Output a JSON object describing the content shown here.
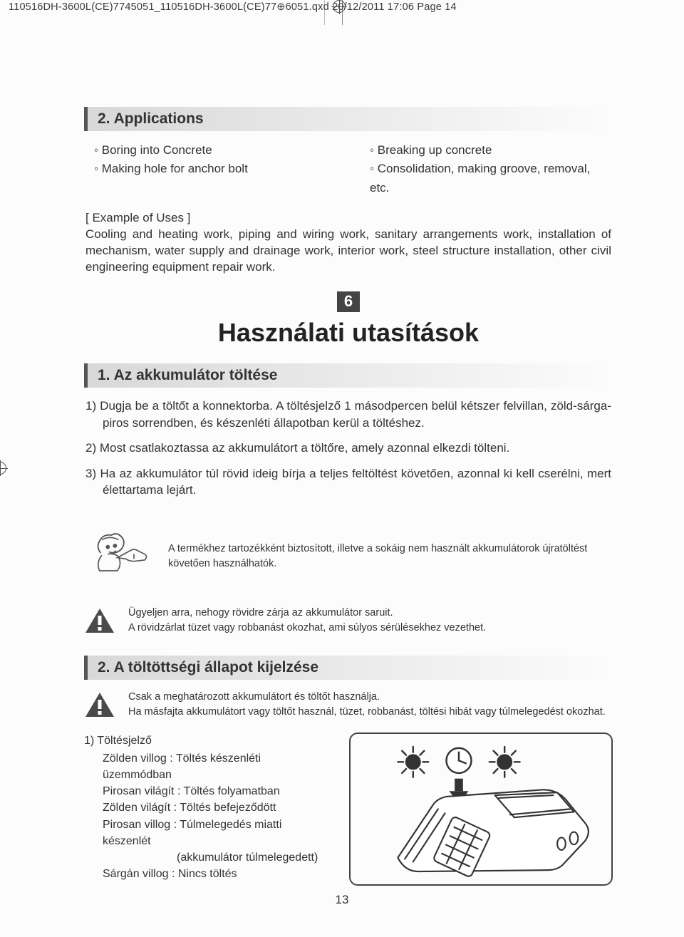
{
  "slug": "110516DH-3600L(CE)7745051_110516DH-3600L(CE)77⊕6051.qxd  20/12/2011  17:06  Page 14",
  "section_applications": {
    "heading": "2. Applications",
    "left_items": [
      "◦ Boring into Concrete",
      "◦ Making hole for anchor bolt"
    ],
    "right_items": [
      "◦ Breaking up concrete",
      "◦ Consolidation, making groove, removal, etc."
    ],
    "example_heading": "[ Example of Uses ]",
    "example_body": "Cooling and heating work, piping and wiring work, sanitary arrangements work, installation of mechanism, water supply and drainage work, interior work, steel structure installation, other civil engineering equipment repair work."
  },
  "chapter": {
    "number": "6",
    "title": "Használati utasítások"
  },
  "section_charging": {
    "heading": "1. Az akkumulátor töltése",
    "item1": "1) Dugja be a töltőt a konnektorba. A töltésjelző 1 másodpercen belül kétszer felvillan, zöld-sárga-piros sorrendben, és készenléti állapotban kerül a töltéshez.",
    "item2": "2) Most csatlakoztassa az akkumulátort a töltőre, amely azonnal elkezdi tölteni.",
    "item3": "3) Ha az akkumulátor túl rövid ideig bírja a teljes feltöltést követően, azonnal ki kell cserélni, mert élettartama lejárt."
  },
  "tip": {
    "text": "A termékhez tartozékként biztosított, illetve a sokáig nem használt akkumulátorok újratöltést követően használhatók."
  },
  "warning1": {
    "line1": "Ügyeljen arra, nehogy rövidre zárja az akkumulátor saruit.",
    "line2": "A rövidzárlat tüzet vagy robbanást okozhat, ami súlyos sérülésekhez vezethet."
  },
  "section_status": {
    "heading": "2. A töltöttségi állapot kijelzése"
  },
  "warning2": {
    "line1": "Csak a meghatározott akkumulátort és töltőt használja.",
    "line2": "Ha másfajta akkumulátort vagy töltőt használ, tüzet, robbanást, töltési hibát vagy túlmelegedést okozhat."
  },
  "status_list": {
    "title": "1) Töltésjelző",
    "rows": [
      {
        "label": "Zölden villog",
        "sep": ":",
        "desc": "Töltés készenléti üzemmódban"
      },
      {
        "label": "Pirosan világít",
        "sep": ":",
        "desc": "Töltés folyamatban"
      },
      {
        "label": "Zölden világít",
        "sep": ":",
        "desc": "Töltés befejeződött"
      },
      {
        "label": "Pirosan villog",
        "sep": ":",
        "desc": "Túlmelegedés miatti készenlét"
      },
      {
        "label": "",
        "sep": "",
        "desc": "(akkumulátor túlmelegedett)"
      },
      {
        "label": "Sárgán villog",
        "sep": ":",
        "desc": "Nincs töltés"
      }
    ]
  },
  "page_number": "13",
  "colors": {
    "text": "#333333",
    "band_border": "#555555",
    "chapter_bg": "#444444",
    "frame": "#444444"
  }
}
